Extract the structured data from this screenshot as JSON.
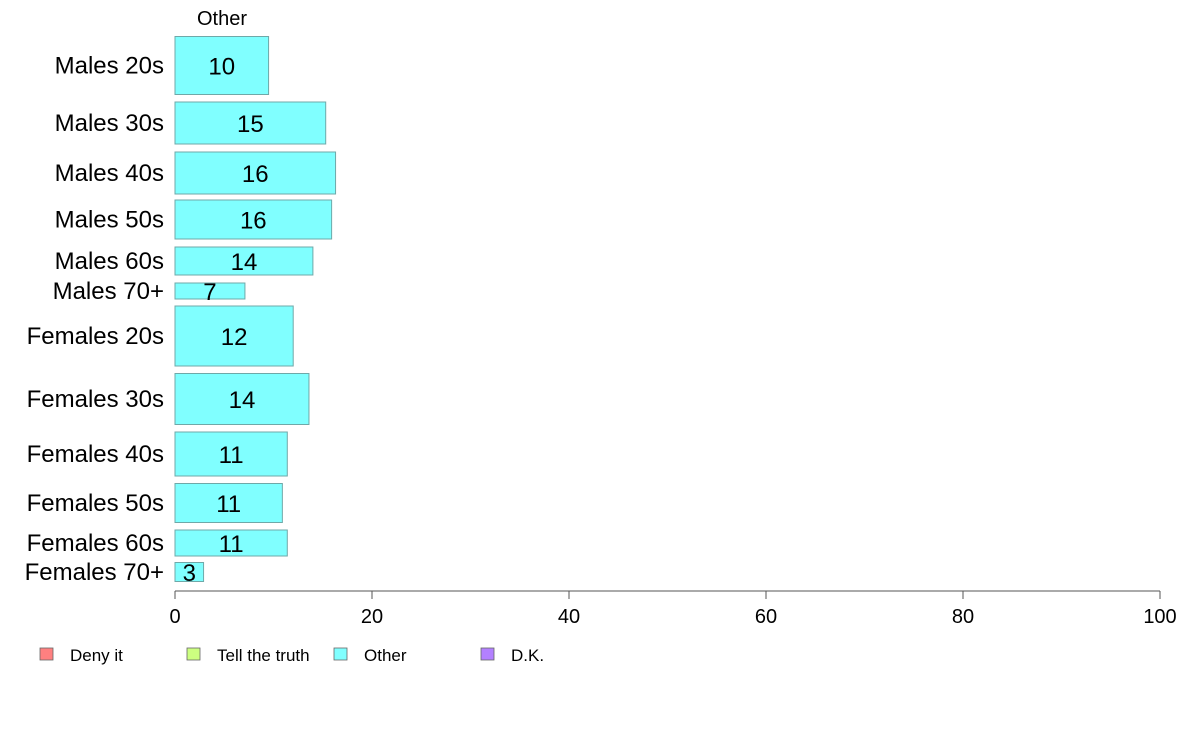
{
  "chart_data": {
    "type": "bar",
    "orientation": "horizontal",
    "panel_title": "Other",
    "categories": [
      "Males 20s",
      "Males 30s",
      "Males 40s",
      "Males 50s",
      "Males 60s",
      "Males 70+",
      "Females 20s",
      "Females 30s",
      "Females 40s",
      "Females 50s",
      "Females 60s",
      "Females 70+"
    ],
    "bar_thickness": [
      29,
      21,
      21,
      19.5,
      14,
      8,
      30,
      25.5,
      22,
      19.5,
      13,
      9.5
    ],
    "series": [
      {
        "name": "Other",
        "color": "#80ffff",
        "values": [
          9.5,
          15.3,
          16.3,
          15.9,
          14.0,
          7.1,
          12.0,
          13.6,
          11.4,
          10.9,
          11.4,
          2.9
        ],
        "labels": [
          "10",
          "15",
          "16",
          "16",
          "14",
          "7",
          "12",
          "14",
          "11",
          "11",
          "11",
          "3"
        ]
      }
    ],
    "xlim": [
      0,
      100
    ],
    "xticks": [
      "0",
      "20",
      "40",
      "60",
      "80",
      "100"
    ],
    "legend": {
      "placement": "bottom-left",
      "items": [
        {
          "label": "Deny it",
          "color": "#ff8080"
        },
        {
          "label": "Tell the truth",
          "color": "#ccff80"
        },
        {
          "label": "Other",
          "color": "#80ffff"
        },
        {
          "label": "D.K.",
          "color": "#b380ff"
        }
      ]
    }
  }
}
